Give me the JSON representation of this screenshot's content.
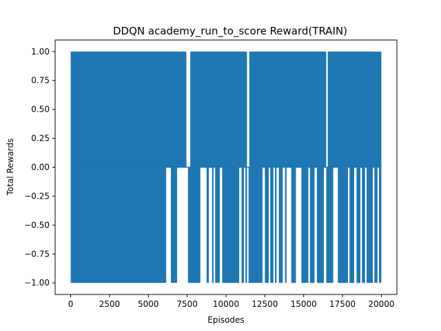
{
  "chart_data": {
    "type": "line",
    "title": "DDQN academy_run_to_score Reward(TRAIN)",
    "xlabel": "Episodes",
    "ylabel": "Total Rewards",
    "xlim": [
      -1000,
      21000
    ],
    "ylim": [
      -1.1,
      1.1
    ],
    "grid": false,
    "series_color": "#1f77b4",
    "x_ticks": [
      0,
      2500,
      5000,
      7500,
      10000,
      12500,
      15000,
      17500,
      20000
    ],
    "x_tick_labels": [
      "0",
      "2500",
      "5000",
      "7500",
      "10000",
      "12500",
      "15000",
      "17500",
      "20000"
    ],
    "y_ticks": [
      -1.0,
      -0.75,
      -0.5,
      -0.25,
      0.0,
      0.25,
      0.5,
      0.75,
      1.0
    ],
    "y_tick_labels": [
      "−1.00",
      "−0.75",
      "−0.50",
      "−0.25",
      "0.00",
      "0.25",
      "0.50",
      "0.75",
      "1.00"
    ],
    "series": [
      {
        "episodes": [
          0,
          20000
        ],
        "reward_values": [
          -1,
          0,
          1
        ],
        "positive_episode_ranges": [
          [
            0,
            7450
          ],
          [
            7700,
            11350
          ],
          [
            11500,
            16450
          ],
          [
            16550,
            20000
          ]
        ],
        "negative_episode_ranges": [
          [
            0,
            6150
          ],
          [
            6450,
            6850
          ],
          [
            7550,
            8350
          ],
          [
            8750,
            8900
          ],
          [
            9100,
            9200
          ],
          [
            9300,
            9600
          ],
          [
            9750,
            10850
          ],
          [
            11000,
            11150
          ],
          [
            11250,
            11350
          ],
          [
            11450,
            12350
          ],
          [
            12500,
            12750
          ],
          [
            12850,
            13050
          ],
          [
            13150,
            13250
          ],
          [
            13400,
            13650
          ],
          [
            13800,
            13900
          ],
          [
            14200,
            14500
          ],
          [
            14850,
            15300
          ],
          [
            15400,
            15700
          ],
          [
            15850,
            16300
          ],
          [
            16450,
            16900
          ],
          [
            17200,
            17850
          ],
          [
            17950,
            18250
          ],
          [
            18400,
            18650
          ],
          [
            18750,
            18950
          ],
          [
            19050,
            19450
          ],
          [
            19550,
            19750
          ],
          [
            19850,
            20000
          ]
        ]
      }
    ]
  }
}
